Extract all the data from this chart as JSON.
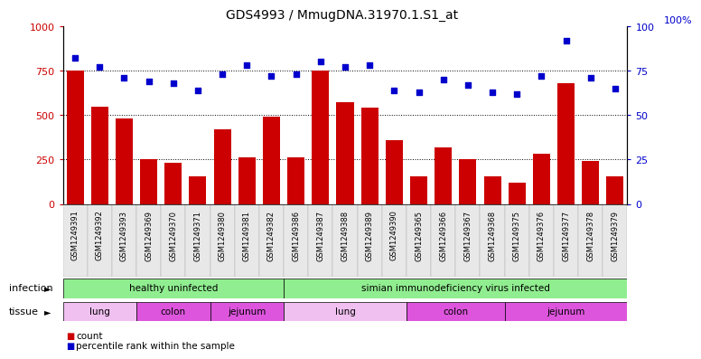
{
  "title": "GDS4993 / MmugDNA.31970.1.S1_at",
  "samples": [
    "GSM1249391",
    "GSM1249392",
    "GSM1249393",
    "GSM1249369",
    "GSM1249370",
    "GSM1249371",
    "GSM1249380",
    "GSM1249381",
    "GSM1249382",
    "GSM1249386",
    "GSM1249387",
    "GSM1249388",
    "GSM1249389",
    "GSM1249390",
    "GSM1249365",
    "GSM1249366",
    "GSM1249367",
    "GSM1249368",
    "GSM1249375",
    "GSM1249376",
    "GSM1249377",
    "GSM1249378",
    "GSM1249379"
  ],
  "counts": [
    750,
    550,
    480,
    250,
    230,
    155,
    420,
    265,
    490,
    265,
    750,
    575,
    540,
    360,
    155,
    320,
    250,
    155,
    120,
    285,
    680,
    240,
    155
  ],
  "percentiles": [
    82,
    77,
    71,
    69,
    68,
    64,
    73,
    78,
    72,
    73,
    80,
    77,
    78,
    64,
    63,
    70,
    67,
    63,
    62,
    72,
    92,
    71,
    65
  ],
  "ylim_left": [
    0,
    1000
  ],
  "ylim_right": [
    0,
    100
  ],
  "yticks_left": [
    0,
    250,
    500,
    750,
    1000
  ],
  "yticks_right": [
    0,
    25,
    50,
    75,
    100
  ],
  "bar_color": "#cc0000",
  "dot_color": "#0000cc",
  "bg_color": "#e8e8e8",
  "plot_bg": "#ffffff",
  "infection_groups": [
    {
      "label": "healthy uninfected",
      "start": 0,
      "end": 9,
      "color": "#90ee90"
    },
    {
      "label": "simian immunodeficiency virus infected",
      "start": 9,
      "end": 23,
      "color": "#90ee90"
    }
  ],
  "tissue_groups": [
    {
      "label": "lung",
      "start": 0,
      "end": 3,
      "color": "#f0c0f0"
    },
    {
      "label": "colon",
      "start": 3,
      "end": 6,
      "color": "#dd55dd"
    },
    {
      "label": "jejunum",
      "start": 6,
      "end": 9,
      "color": "#dd55dd"
    },
    {
      "label": "lung",
      "start": 9,
      "end": 14,
      "color": "#f0c0f0"
    },
    {
      "label": "colon",
      "start": 14,
      "end": 18,
      "color": "#dd55dd"
    },
    {
      "label": "jejunum",
      "start": 18,
      "end": 23,
      "color": "#dd55dd"
    }
  ],
  "infection_label": "infection",
  "tissue_label": "tissue",
  "legend_count": "count",
  "legend_percentile": "percentile rank within the sample"
}
